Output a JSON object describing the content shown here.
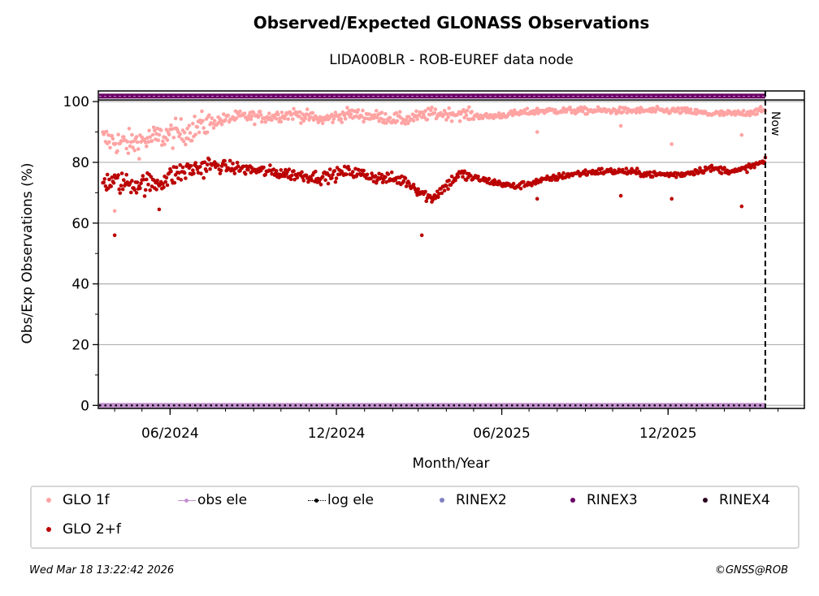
{
  "chart_data": {
    "type": "scatter",
    "title": "Observed/Expected GLONASS Observations",
    "subtitle": "LIDA00BLR - ROB-EUREF data node",
    "xlabel": "Month/Year",
    "ylabel": "Obs/Exp Observations (%)",
    "ylim": [
      -1,
      103.5
    ],
    "xlim": [
      "2024-03-14",
      "2026-04-30"
    ],
    "yticks": [
      0,
      20,
      40,
      60,
      80,
      100
    ],
    "xticks": [
      "06/2024",
      "12/2024",
      "06/2025",
      "12/2025"
    ],
    "xtick_dates": [
      "2024-06-01",
      "2024-12-01",
      "2025-06-01",
      "2025-12-01"
    ],
    "grid": "horizontal",
    "now_marker": {
      "date": "2026-03-18",
      "label": "Now"
    },
    "series": [
      {
        "name": "GLO 1f",
        "color": "#ffa3a3",
        "monthly_mean": [
          {
            "month": "2024-03",
            "value": 88
          },
          {
            "month": "2024-04",
            "value": 86
          },
          {
            "month": "2024-05",
            "value": 88
          },
          {
            "month": "2024-06",
            "value": 90
          },
          {
            "month": "2024-07",
            "value": 93
          },
          {
            "month": "2024-08",
            "value": 95
          },
          {
            "month": "2024-09",
            "value": 95
          },
          {
            "month": "2024-10",
            "value": 96
          },
          {
            "month": "2024-11",
            "value": 94
          },
          {
            "month": "2024-12",
            "value": 96
          },
          {
            "month": "2025-01",
            "value": 95
          },
          {
            "month": "2025-02",
            "value": 94
          },
          {
            "month": "2025-03",
            "value": 96
          },
          {
            "month": "2025-04",
            "value": 96
          },
          {
            "month": "2025-05",
            "value": 95
          },
          {
            "month": "2025-06",
            "value": 96
          },
          {
            "month": "2025-07",
            "value": 97
          },
          {
            "month": "2025-08",
            "value": 97
          },
          {
            "month": "2025-09",
            "value": 97
          },
          {
            "month": "2025-10",
            "value": 97
          },
          {
            "month": "2025-11",
            "value": 97
          },
          {
            "month": "2025-12",
            "value": 97
          },
          {
            "month": "2026-01",
            "value": 96
          },
          {
            "month": "2026-02",
            "value": 96
          },
          {
            "month": "2026-03",
            "value": 97
          }
        ],
        "outliers": [
          {
            "date": "2024-04-01",
            "value": 64
          },
          {
            "date": "2025-07-10",
            "value": 90
          },
          {
            "date": "2025-10-10",
            "value": 92
          },
          {
            "date": "2025-12-05",
            "value": 86
          },
          {
            "date": "2026-02-20",
            "value": 89
          }
        ]
      },
      {
        "name": "GLO 2+f",
        "color": "#bb0000",
        "monthly_mean": [
          {
            "month": "2024-03",
            "value": 74
          },
          {
            "month": "2024-04",
            "value": 73
          },
          {
            "month": "2024-05",
            "value": 73
          },
          {
            "month": "2024-06",
            "value": 77
          },
          {
            "month": "2024-07",
            "value": 79
          },
          {
            "month": "2024-08",
            "value": 78
          },
          {
            "month": "2024-09",
            "value": 77
          },
          {
            "month": "2024-10",
            "value": 76
          },
          {
            "month": "2024-11",
            "value": 75
          },
          {
            "month": "2024-12",
            "value": 77
          },
          {
            "month": "2025-01",
            "value": 75
          },
          {
            "month": "2025-02",
            "value": 74
          },
          {
            "month": "2025-03",
            "value": 68
          },
          {
            "month": "2025-04",
            "value": 76
          },
          {
            "month": "2025-05",
            "value": 74
          },
          {
            "month": "2025-06",
            "value": 72
          },
          {
            "month": "2025-07",
            "value": 74
          },
          {
            "month": "2025-08",
            "value": 76
          },
          {
            "month": "2025-09",
            "value": 77
          },
          {
            "month": "2025-10",
            "value": 77
          },
          {
            "month": "2025-11",
            "value": 76
          },
          {
            "month": "2025-12",
            "value": 76
          },
          {
            "month": "2026-01",
            "value": 78
          },
          {
            "month": "2026-02",
            "value": 77
          },
          {
            "month": "2026-03",
            "value": 80
          }
        ],
        "outliers": [
          {
            "date": "2024-04-01",
            "value": 56
          },
          {
            "date": "2024-05-20",
            "value": 64.5
          },
          {
            "date": "2025-03-05",
            "value": 56
          },
          {
            "date": "2025-07-10",
            "value": 68
          },
          {
            "date": "2025-10-10",
            "value": 69
          },
          {
            "date": "2025-12-05",
            "value": 68
          },
          {
            "date": "2026-02-20",
            "value": 65.5
          }
        ]
      },
      {
        "name": "obs ele",
        "color": "#c38fcf",
        "band_value": 0
      },
      {
        "name": "log ele",
        "color": "#000000",
        "band_value": 0
      },
      {
        "name": "RINEX2",
        "color": "#8080c0"
      },
      {
        "name": "RINEX3",
        "color": "#6a0066",
        "band_value": 101.8
      },
      {
        "name": "RINEX4",
        "color": "#2a0020"
      }
    ]
  },
  "legend": {
    "items": [
      {
        "label": "GLO 1f"
      },
      {
        "label": "obs ele"
      },
      {
        "label": "log ele"
      },
      {
        "label": "RINEX2"
      },
      {
        "label": "RINEX3"
      },
      {
        "label": "RINEX4"
      },
      {
        "label": "GLO 2+f"
      }
    ]
  },
  "footer": {
    "timestamp": "Wed Mar 18 13:22:42 2026",
    "copyright": "©GNSS@ROB"
  }
}
